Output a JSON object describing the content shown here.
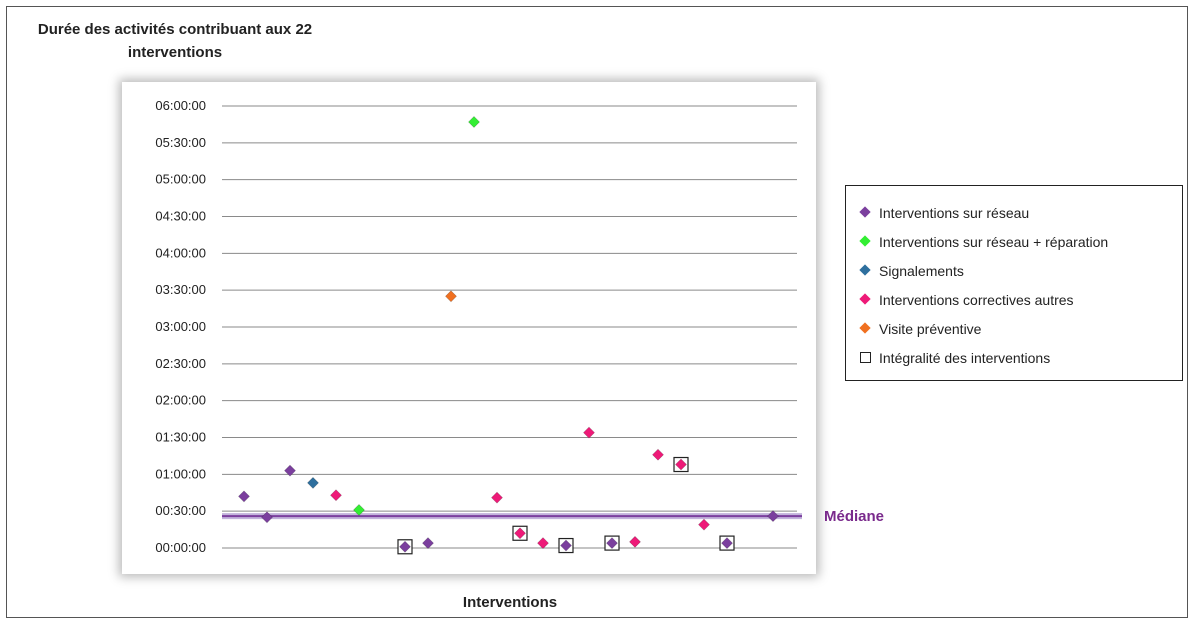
{
  "chart_data": {
    "type": "scatter",
    "title": "Durée des activités contribuant aux 22 interventions",
    "xlabel": "Interventions",
    "ylabel": "",
    "y_ticks": [
      "00:00:00",
      "00:30:00",
      "01:00:00",
      "01:30:00",
      "02:00:00",
      "02:30:00",
      "03:00:00",
      "03:30:00",
      "04:00:00",
      "04:30:00",
      "05:00:00",
      "05:30:00",
      "06:00:00"
    ],
    "ylim_minutes": [
      0,
      360
    ],
    "grid": "horizontal",
    "legend_position": "right",
    "median_label": "Médiane",
    "median_minutes": 26,
    "series": [
      {
        "name": "Interventions sur réseau",
        "color": "#7b3f9e",
        "marker": "diamond",
        "points": [
          {
            "x": 1,
            "y": 42
          },
          {
            "x": 2,
            "y": 25
          },
          {
            "x": 3,
            "y": 63
          },
          {
            "x": 8,
            "y": 1
          },
          {
            "x": 9,
            "y": 4
          },
          {
            "x": 15,
            "y": 2
          },
          {
            "x": 17,
            "y": 4
          },
          {
            "x": 22,
            "y": 4
          },
          {
            "x": 24,
            "y": 26
          }
        ]
      },
      {
        "name": "Interventions  sur réseau + réparation",
        "color": "#33ee33",
        "marker": "diamond",
        "points": [
          {
            "x": 6,
            "y": 31
          },
          {
            "x": 11,
            "y": 347
          }
        ]
      },
      {
        "name": "Signalements",
        "color": "#2e6f9e",
        "marker": "diamond",
        "points": [
          {
            "x": 4,
            "y": 53
          }
        ]
      },
      {
        "name": "Interventions correctives autres",
        "color": "#ee1a78",
        "marker": "diamond",
        "points": [
          {
            "x": 5,
            "y": 43
          },
          {
            "x": 12,
            "y": 41
          },
          {
            "x": 13,
            "y": 12
          },
          {
            "x": 14,
            "y": 4
          },
          {
            "x": 16,
            "y": 94
          },
          {
            "x": 18,
            "y": 5
          },
          {
            "x": 19,
            "y": 76
          },
          {
            "x": 20,
            "y": 68
          },
          {
            "x": 21,
            "y": 19
          }
        ]
      },
      {
        "name": "Visite préventive",
        "color": "#f07020",
        "marker": "diamond",
        "points": [
          {
            "x": 10,
            "y": 205
          }
        ]
      },
      {
        "name": "Intégralité des interventions",
        "color": "#222222",
        "marker": "square",
        "points": [
          {
            "x": 8,
            "y": 1
          },
          {
            "x": 13,
            "y": 12
          },
          {
            "x": 15,
            "y": 2
          },
          {
            "x": 17,
            "y": 4
          },
          {
            "x": 20,
            "y": 68
          },
          {
            "x": 22,
            "y": 4
          }
        ]
      }
    ]
  }
}
